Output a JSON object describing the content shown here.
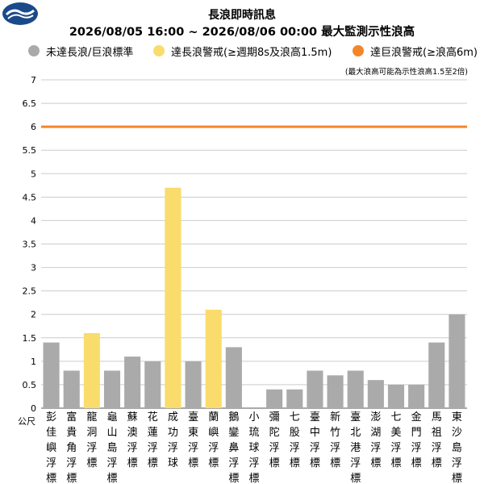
{
  "header": {
    "title": "長浪即時訊息",
    "subtitle": "2026/08/05 16:00 ~ 2026/08/06 00:00 最大監測示性浪高",
    "note": "(最大浪高可能為示性浪高1.5至2倍)"
  },
  "legend": [
    {
      "label": "未達長浪/巨浪標準",
      "color": "#aaaaaa"
    },
    {
      "label": "達長浪警戒(≥週期8s及浪高1.5m)",
      "color": "#f9dc6b"
    },
    {
      "label": "達巨浪警戒(≥浪高6m)",
      "color": "#f4862a"
    }
  ],
  "chart_data": {
    "type": "bar",
    "title": "2026/08/05 16:00 ~ 2026/08/06 00:00 最大監測示性浪高",
    "ylabel": "公尺",
    "ylim": [
      0,
      7
    ],
    "yticks": [
      "0",
      "0.5",
      "1",
      "1.5",
      "2",
      "2.5",
      "3",
      "3.5",
      "4",
      "4.5",
      "5",
      "5.5",
      "6",
      "6.5",
      "7"
    ],
    "grid": true,
    "reference_line": {
      "value": 6,
      "color": "#f4862a"
    },
    "categories": [
      "彭佳嶼浮標",
      "富貴角浮標",
      "龍洞浮標",
      "龜山島浮標",
      "蘇澳浮標",
      "花蓮浮標",
      "成功浮球",
      "臺東浮標",
      "蘭嶼浮標",
      "鵝鑾鼻浮標",
      "小琉球浮標",
      "彌陀浮標",
      "七股浮標",
      "臺中浮標",
      "新竹浮標",
      "臺北港浮標",
      "澎湖浮標",
      "七美浮標",
      "金門浮標",
      "馬祖浮標",
      "東沙島浮標"
    ],
    "values": [
      1.4,
      0.8,
      1.6,
      0.8,
      1.1,
      1.0,
      4.7,
      1.0,
      2.1,
      1.3,
      0,
      0.4,
      0.4,
      0.8,
      0.7,
      0.8,
      0.6,
      0.5,
      0.5,
      1.4,
      2.0
    ],
    "bar_colors": [
      "#aaaaaa",
      "#aaaaaa",
      "#f9dc6b",
      "#aaaaaa",
      "#aaaaaa",
      "#aaaaaa",
      "#f9dc6b",
      "#aaaaaa",
      "#f9dc6b",
      "#aaaaaa",
      "#aaaaaa",
      "#aaaaaa",
      "#aaaaaa",
      "#aaaaaa",
      "#aaaaaa",
      "#aaaaaa",
      "#aaaaaa",
      "#aaaaaa",
      "#aaaaaa",
      "#aaaaaa",
      "#aaaaaa"
    ]
  }
}
